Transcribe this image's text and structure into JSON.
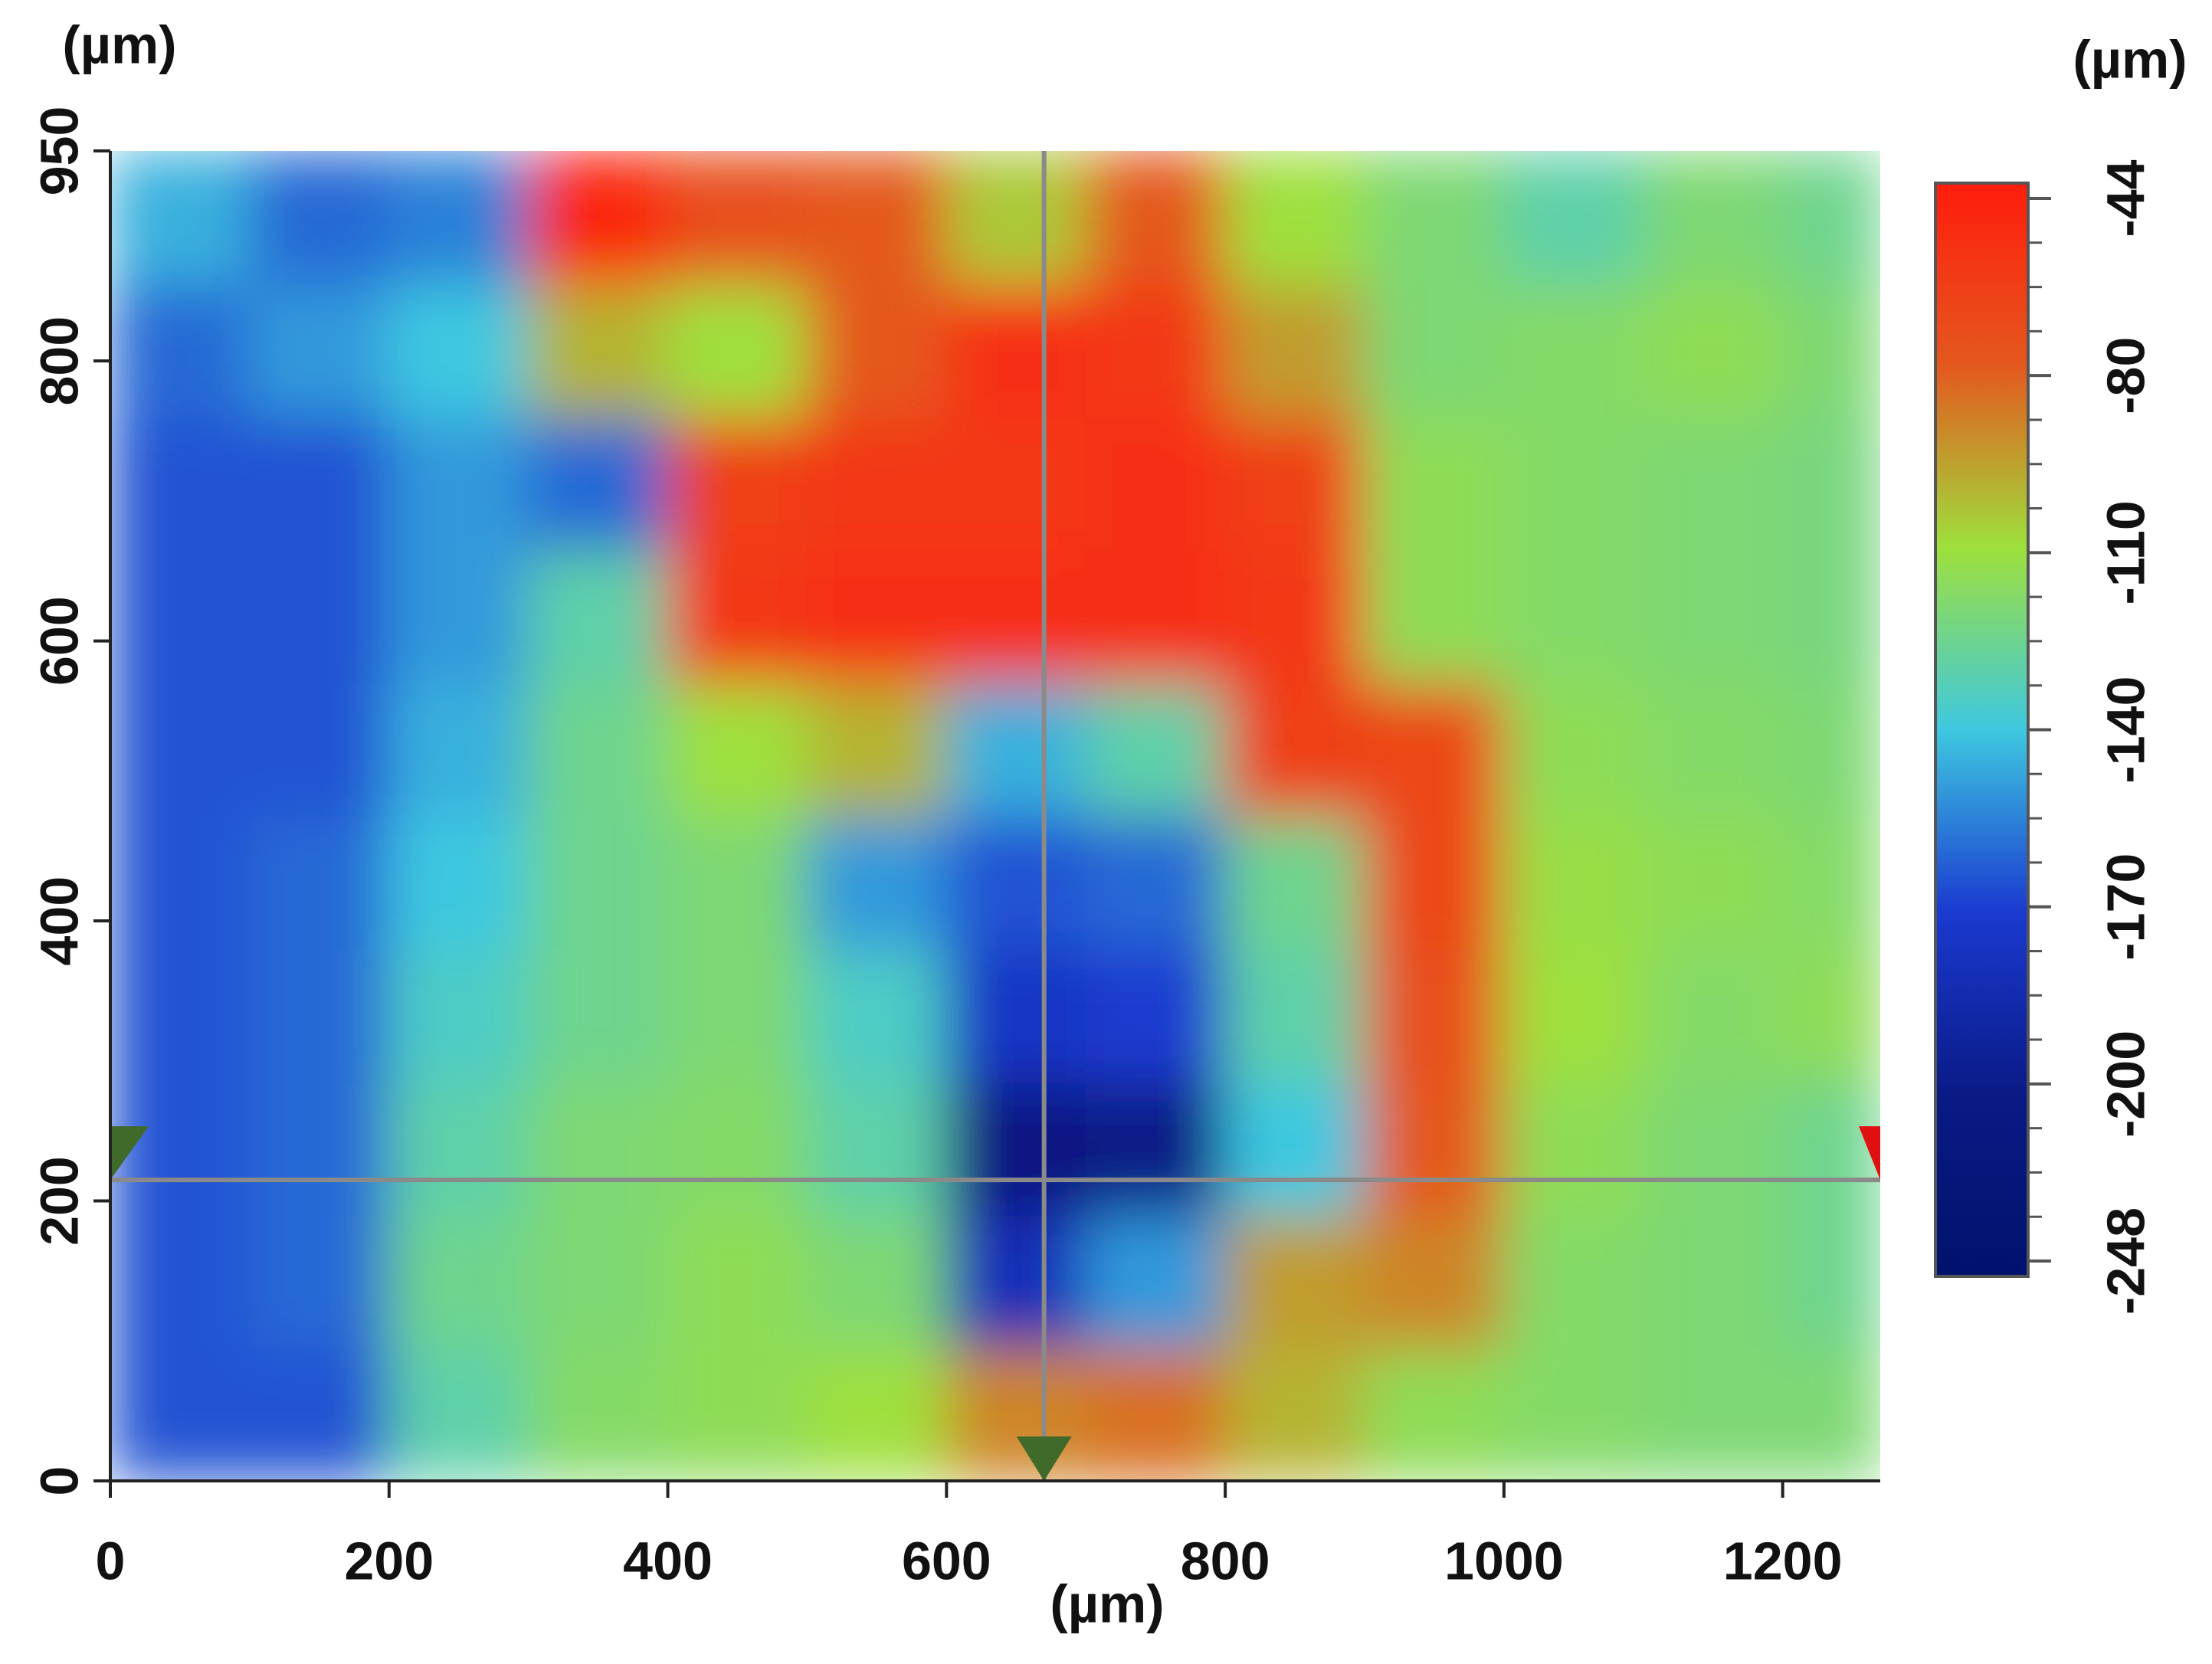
{
  "chart_data": {
    "type": "heatmap",
    "x_label": "(µm)",
    "y_label": "(µm)",
    "colorbar_label": "(µm)",
    "xlim": [
      0,
      1270
    ],
    "ylim": [
      0,
      950
    ],
    "xticks": [
      0,
      200,
      400,
      600,
      800,
      1000,
      1200
    ],
    "yticks": [
      0,
      200,
      400,
      600,
      800,
      950
    ],
    "xbins": [
      0,
      100,
      200,
      300,
      400,
      500,
      600,
      700,
      800,
      900,
      1000,
      1100,
      1200,
      1270
    ],
    "ybins": [
      0,
      95,
      190,
      285,
      380,
      475,
      570,
      665,
      760,
      855,
      950
    ],
    "z": [
      [
        -165,
        -165,
        -130,
        -118,
        -115,
        -110,
        -90,
        -85,
        -100,
        -115,
        -118,
        -120,
        -120
      ],
      [
        -165,
        -160,
        -125,
        -120,
        -115,
        -120,
        -180,
        -150,
        -95,
        -90,
        -118,
        -120,
        -125
      ],
      [
        -165,
        -160,
        -130,
        -120,
        -118,
        -130,
        -210,
        -200,
        -140,
        -80,
        -115,
        -120,
        -125
      ],
      [
        -165,
        -160,
        -135,
        -125,
        -120,
        -135,
        -175,
        -170,
        -130,
        -75,
        -110,
        -118,
        -115
      ],
      [
        -165,
        -160,
        -140,
        -125,
        -120,
        -150,
        -165,
        -160,
        -125,
        -70,
        -112,
        -115,
        -118
      ],
      [
        -165,
        -165,
        -145,
        -125,
        -110,
        -100,
        -145,
        -130,
        -65,
        -70,
        -115,
        -118,
        -120
      ],
      [
        -165,
        -165,
        -150,
        -130,
        -60,
        -55,
        -55,
        -55,
        -60,
        -115,
        -118,
        -120,
        -122
      ],
      [
        -165,
        -165,
        -150,
        -160,
        -65,
        -60,
        -60,
        -55,
        -65,
        -115,
        -118,
        -120,
        -122
      ],
      [
        -160,
        -150,
        -140,
        -100,
        -110,
        -80,
        -55,
        -60,
        -95,
        -120,
        -118,
        -115,
        -120
      ],
      [
        -145,
        -160,
        -155,
        -50,
        -75,
        -80,
        -105,
        -80,
        -110,
        -120,
        -130,
        -120,
        -125
      ]
    ],
    "colorbar_ticks": [
      -44,
      -80,
      -110,
      -140,
      -170,
      -200,
      -248
    ],
    "colorbar_colors": [
      "#ff1c0c",
      "#e4581e",
      "#9ee03c",
      "#3ec8e0",
      "#1a3ad0",
      "#0a1a86",
      "#00126c"
    ],
    "crosshair": {
      "x": 670,
      "y": 215
    }
  }
}
